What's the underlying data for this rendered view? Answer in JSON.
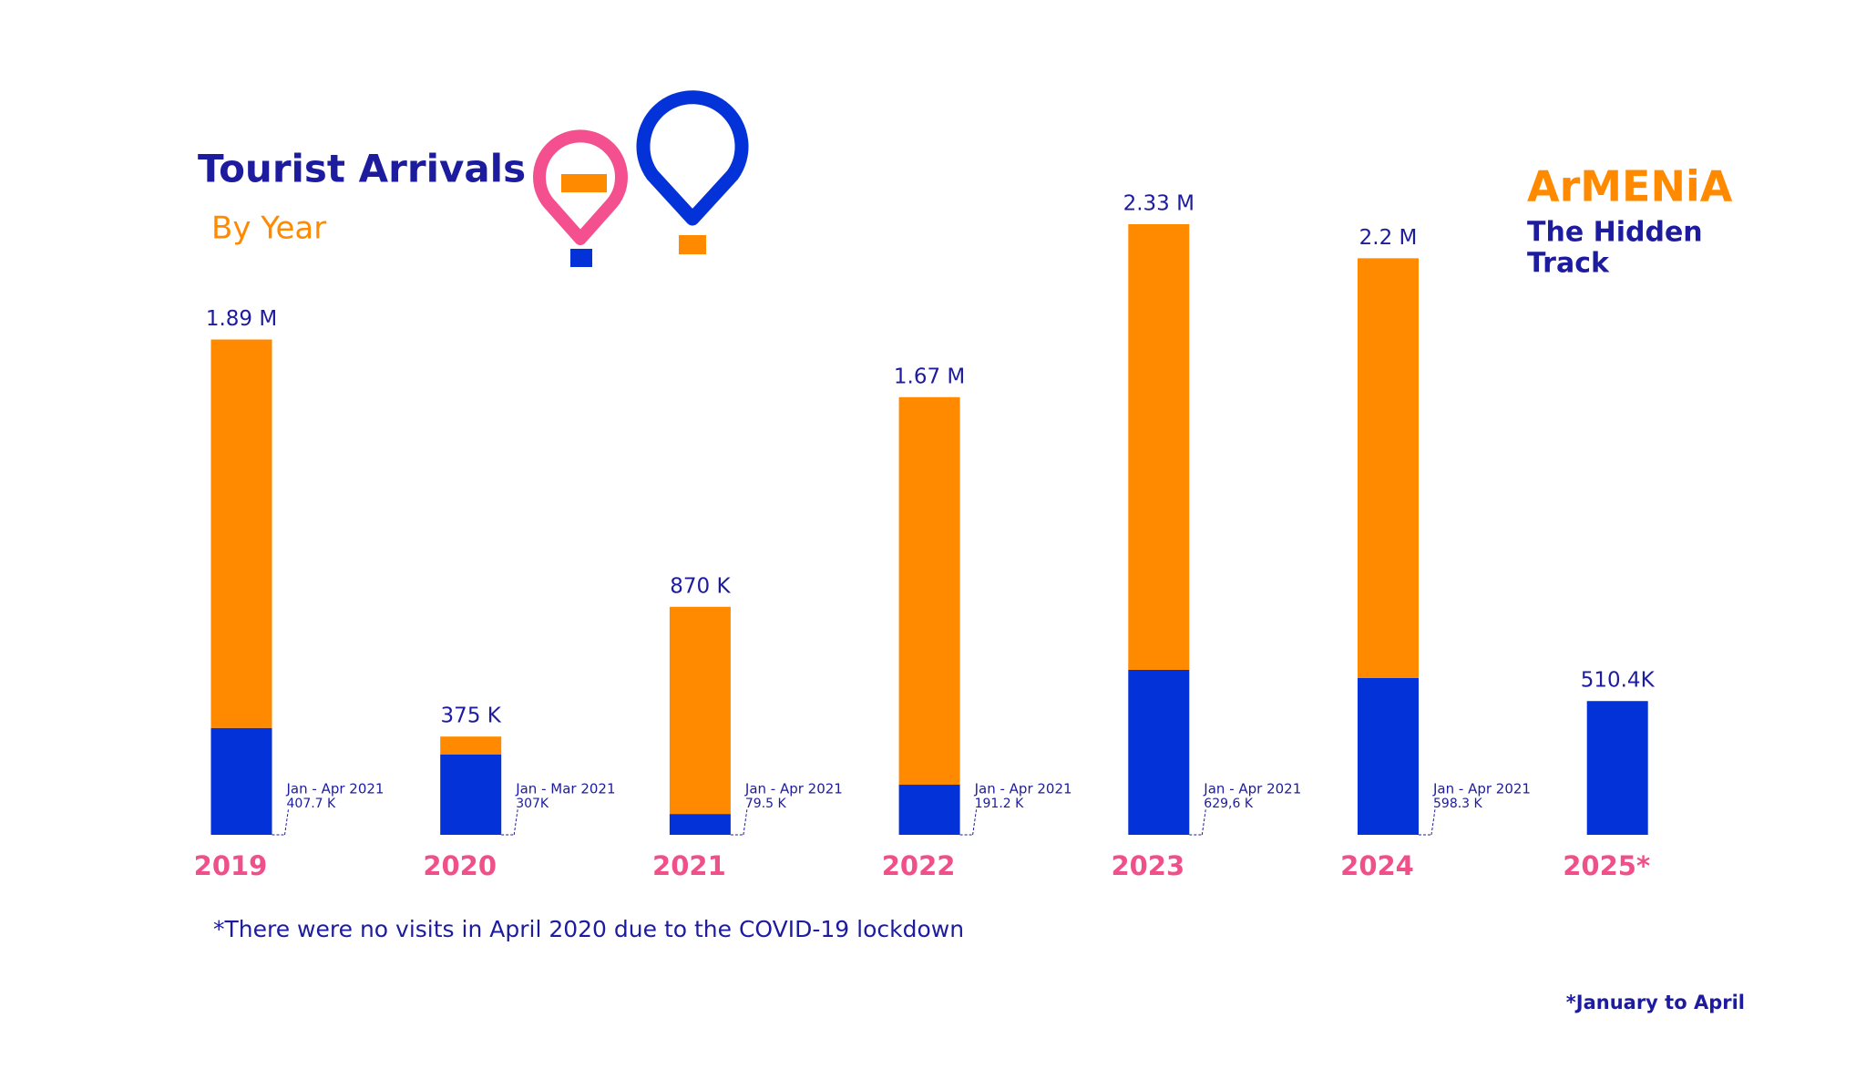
{
  "chart_data": {
    "type": "stacked-bar",
    "title": "Tourist Arrivals",
    "subtitle": "By Year",
    "brand": {
      "name": "ArMENiA",
      "tagline": [
        "The Hidden",
        "Track"
      ]
    },
    "categories": [
      "2019",
      "2020",
      "2021",
      "2022",
      "2023",
      "2024",
      "2025*"
    ],
    "series": [
      {
        "color": "#0332d8",
        "values": [
          407700,
          307000,
          79500,
          191200,
          629600,
          598300,
          510400
        ],
        "value_labels": [
          "407.7 K",
          "307K",
          "79.5 K",
          "191.2 K",
          "629,6 K",
          "598.3 K",
          null
        ],
        "period_labels": [
          "Jan - Apr 2021",
          "Jan - Mar 2021",
          "Jan - Apr 2021",
          "Jan - Apr 2021",
          "Jan - Apr 2021",
          "Jan - Apr 2021",
          null
        ]
      },
      {
        "color": "#ff8a00",
        "values": [
          1482300,
          68000,
          790500,
          1478800,
          1700400,
          1601700,
          null
        ]
      }
    ],
    "totals": [
      1890000,
      375000,
      870000,
      1670000,
      2330000,
      2200000,
      510400
    ],
    "total_labels": [
      "1.89 M",
      "375 K",
      "870 K",
      "1.67 M",
      "2.33 M",
      "2.2 M",
      "510.4K"
    ],
    "footnote": "*There were no visits in April 2020 due to the COVID-19 lockdown",
    "note": "*January to April"
  }
}
